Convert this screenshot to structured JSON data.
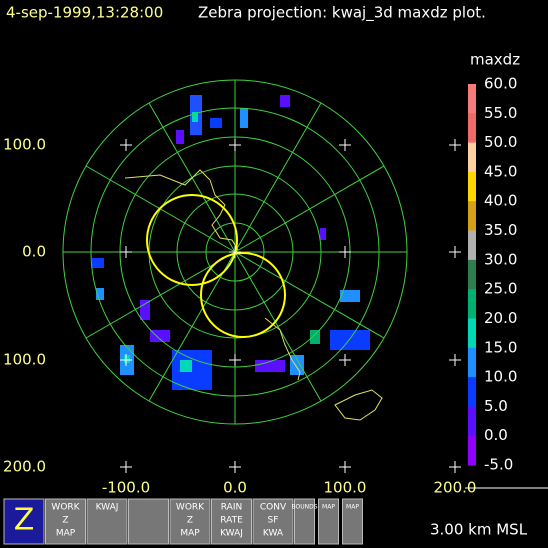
{
  "header": {
    "timestamp": "4-sep-1999,13:28:00",
    "title": "Zebra projection: kwaj_3d maxdz plot."
  },
  "plot": {
    "y_labels": [
      "100.0",
      "0.0",
      "100.0",
      "200.0"
    ],
    "x_labels": [
      "-100.0",
      "0.0",
      "100.0",
      "200.0"
    ]
  },
  "colorbar": {
    "label": "maxdz",
    "labels": [
      "60.0",
      "55.0",
      "50.0",
      "45.0",
      "40.0",
      "35.0",
      "30.0",
      "25.0",
      "20.0",
      "15.0",
      "10.0",
      "5.0",
      "0.0",
      "-5.0"
    ],
    "colors": [
      "#f47c7c",
      "#f06a6a",
      "#ffd0a0",
      "#ffd700",
      "#d4a017",
      "#b0b0b0",
      "#2e7d4f",
      "#00b070",
      "#00d8b8",
      "#1e90ff",
      "#0a3cff",
      "#5a10ff",
      "#9000ff"
    ]
  },
  "toolbar": {
    "buttons": [
      {
        "lines": [
          "Z"
        ]
      },
      {
        "lines": [
          "WORK",
          "Z",
          "MAP"
        ]
      },
      {
        "lines": [
          "KWAJ"
        ]
      },
      {
        "lines": [
          ""
        ]
      },
      {
        "lines": [
          "WORK",
          "Z",
          "MAP"
        ]
      },
      {
        "lines": [
          "RAIN",
          "RATE",
          "KWAJ"
        ]
      },
      {
        "lines": [
          "CONV",
          "SF",
          "KWA"
        ]
      },
      {
        "lines": [
          "BOUNDS"
        ]
      },
      {
        "lines": [
          "MAP"
        ]
      },
      {
        "lines": [
          "MAP"
        ]
      }
    ]
  },
  "status": "3.00 km MSL"
}
